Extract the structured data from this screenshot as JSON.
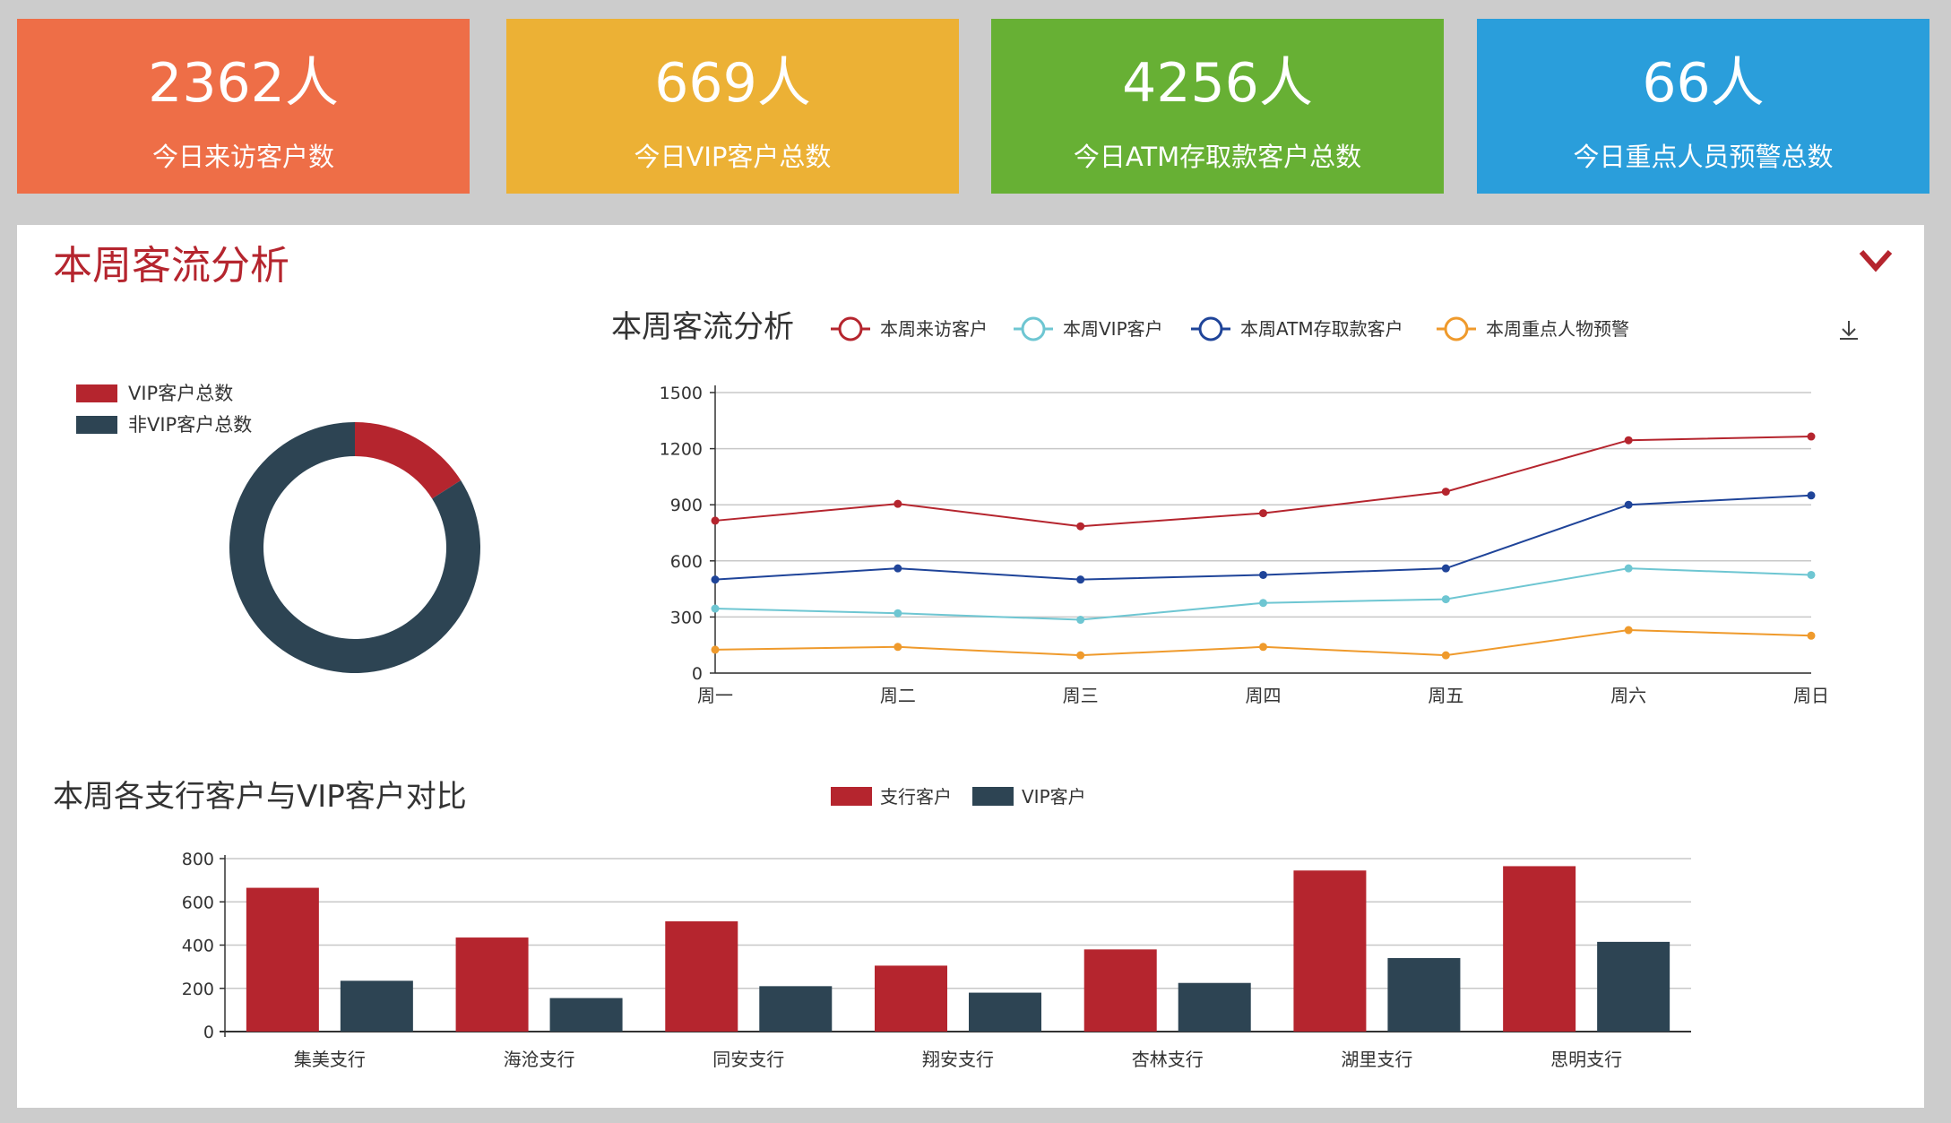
{
  "kpis": [
    {
      "value": "2362人",
      "label": "今日来访客户数",
      "color": "#ee6e47"
    },
    {
      "value": "669人",
      "label": "今日VIP客户总数",
      "color": "#ecb135"
    },
    {
      "value": "4256人",
      "label": "今日ATM存取款客户总数",
      "color": "#67b034"
    },
    {
      "value": "66人",
      "label": "今日重点人员预警总数",
      "color": "#2a9edb"
    }
  ],
  "panel": {
    "title": "本周客流分析"
  },
  "chart_data": [
    {
      "type": "pie",
      "variant": "donut",
      "legend": [
        "VIP客户总数",
        "非VIP客户总数"
      ],
      "values": [
        16,
        84
      ],
      "colors": [
        "#b5252e",
        "#2d4453"
      ],
      "legend_position": "top-left"
    },
    {
      "type": "line",
      "title": "本周客流分析",
      "categories": [
        "周一",
        "周二",
        "周三",
        "周四",
        "周五",
        "周六",
        "周日"
      ],
      "yticks": [
        "0",
        "300",
        "600",
        "900",
        "1200",
        "1500"
      ],
      "ylim": [
        0,
        1500
      ],
      "grid": true,
      "legend_position": "top",
      "series": [
        {
          "name": "本周来访客户",
          "color": "#b5252e",
          "values": [
            815,
            905,
            785,
            855,
            970,
            1245,
            1265
          ]
        },
        {
          "name": "本周VIP客户",
          "color": "#6ec6d2",
          "values": [
            345,
            320,
            285,
            375,
            395,
            560,
            525
          ]
        },
        {
          "name": "本周ATM存取款客户",
          "color": "#1f4499",
          "values": [
            500,
            560,
            500,
            525,
            560,
            900,
            950
          ]
        },
        {
          "name": "本周重点人物预警",
          "color": "#ef9a2c",
          "values": [
            125,
            140,
            95,
            140,
            95,
            230,
            200
          ]
        }
      ]
    },
    {
      "type": "bar",
      "title": "本周各支行客户与VIP客户对比",
      "categories": [
        "集美支行",
        "海沧支行",
        "同安支行",
        "翔安支行",
        "杏林支行",
        "湖里支行",
        "思明支行"
      ],
      "yticks": [
        "0",
        "200",
        "400",
        "600",
        "800"
      ],
      "ylim": [
        0,
        800
      ],
      "grid": true,
      "legend_position": "top",
      "series": [
        {
          "name": "支行客户",
          "color": "#b5252e",
          "values": [
            665,
            435,
            510,
            305,
            380,
            745,
            765
          ]
        },
        {
          "name": "VIP客户",
          "color": "#2d4453",
          "values": [
            235,
            155,
            210,
            180,
            225,
            340,
            415
          ]
        }
      ]
    }
  ]
}
